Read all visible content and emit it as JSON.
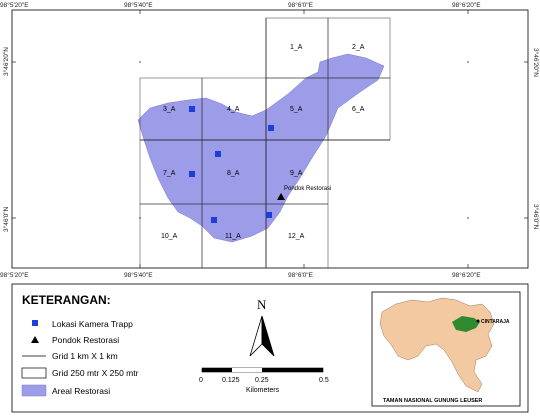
{
  "map": {
    "coords_top": [
      "98°5'20\"E",
      "98°5'40\"E",
      "98°6'0\"E",
      "98°6'20\"E"
    ],
    "coords_bottom": [
      "98°5'20\"E",
      "98°5'40\"E",
      "98°6'0\"E",
      "98°6'20\"E"
    ],
    "coords_right": [
      "3°46'20\"N",
      "3°46'0\"N"
    ],
    "coords_left": [
      "3°46'20\"N",
      "3°46'0\"N"
    ],
    "grid_cells": [
      "1_A",
      "2_A",
      "3_A",
      "4_A",
      "5_A",
      "6_A",
      "7_A",
      "8_A",
      "9_A",
      "10_A",
      "11_A",
      "12_A"
    ],
    "poi_label": "Pondok Restorasi",
    "colors": {
      "area": "#9c9ce8",
      "camera": "#1c3fd8",
      "inset_land": "#f2c9a0",
      "inset_highlight": "#2f8a2f"
    }
  },
  "north": {
    "label": "N"
  },
  "scale": {
    "ticks": [
      "0",
      "0.125",
      "0.25",
      "0.5"
    ],
    "unit": "Kilometers"
  },
  "legend": {
    "title": "KETERANGAN:",
    "items": [
      {
        "symbol": "blue-square",
        "label": "Lokasi Kamera Trapp"
      },
      {
        "symbol": "black-triangle",
        "label": "Pondok Restorasi"
      },
      {
        "symbol": "line",
        "label": "Grid  1 km X 1 km"
      },
      {
        "symbol": "box",
        "label": "Grid 250 mtr X 250 mtr"
      },
      {
        "symbol": "purple-fill",
        "label": "Areal Restorasi"
      }
    ]
  },
  "inset": {
    "place_label": "CINTARAJA",
    "caption": "TAMAN NASIONAL GUNUNG LEUSER"
  }
}
